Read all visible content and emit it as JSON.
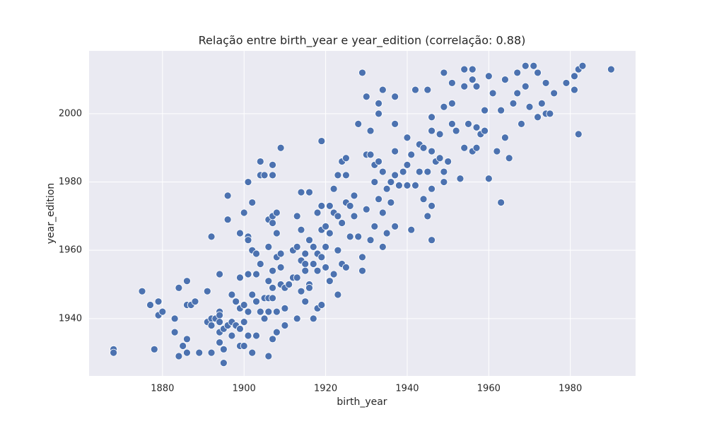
{
  "chart_data": {
    "type": "scatter",
    "title": "Relação entre birth_year e year_edition (correlação: 0.88)",
    "x_label": "birth_year",
    "y_label": "year_edition",
    "color": "#4c72b0",
    "grid": true,
    "xlim": [
      1862,
      1996
    ],
    "ylim": [
      1923.2,
      2018.4
    ],
    "xticks": [
      1880,
      1900,
      1920,
      1940,
      1960,
      1980
    ],
    "yticks": [
      1940,
      1960,
      1980,
      2000
    ],
    "x": [
      1868,
      1868,
      1875,
      1877,
      1879,
      1878,
      1879,
      1880,
      1883,
      1883,
      1884,
      1886,
      1884,
      1885,
      1886,
      1886,
      1886,
      1887,
      1888,
      1889,
      1891,
      1891,
      1892,
      1892,
      1892,
      1892,
      1893,
      1894,
      1894,
      1894,
      1894,
      1894,
      1894,
      1895,
      1895,
      1895,
      1896,
      1896,
      1896,
      1897,
      1897,
      1897,
      1898,
      1898,
      1899,
      1899,
      1899,
      1899,
      1899,
      1900,
      1900,
      1900,
      1900,
      1901,
      1901,
      1901,
      1901,
      1901,
      1901,
      1902,
      1902,
      1902,
      1902,
      1903,
      1903,
      1903,
      1903,
      1904,
      1904,
      1904,
      1904,
      1905,
      1905,
      1905,
      1906,
      1906,
      1906,
      1906,
      1906,
      1906,
      1907,
      1907,
      1907,
      1907,
      1907,
      1907,
      1907,
      1907,
      1908,
      1908,
      1908,
      1908,
      1908,
      1909,
      1909,
      1909,
      1909,
      1910,
      1910,
      1910,
      1911,
      1912,
      1912,
      1913,
      1913,
      1913,
      1913,
      1914,
      1914,
      1914,
      1914,
      1915,
      1915,
      1915,
      1915,
      1916,
      1916,
      1916,
      1916,
      1917,
      1917,
      1917,
      1918,
      1918,
      1918,
      1918,
      1919,
      1919,
      1919,
      1919,
      1919,
      1920,
      1920,
      1920,
      1921,
      1921,
      1921,
      1922,
      1922,
      1922,
      1923,
      1923,
      1923,
      1923,
      1924,
      1924,
      1924,
      1925,
      1925,
      1925,
      1925,
      1926,
      1926,
      1927,
      1927,
      1928,
      1928,
      1929,
      1929,
      1929,
      1930,
      1930,
      1930,
      1931,
      1931,
      1931,
      1932,
      1932,
      1932,
      1933,
      1933,
      1933,
      1933,
      1934,
      1934,
      1934,
      1934,
      1935,
      1935,
      1936,
      1936,
      1937,
      1937,
      1937,
      1937,
      1937,
      1938,
      1939,
      1940,
      1940,
      1940,
      1941,
      1941,
      1942,
      1942,
      1943,
      1943,
      1944,
      1944,
      1945,
      1945,
      1945,
      1946,
      1946,
      1946,
      1946,
      1946,
      1946,
      1947,
      1948,
      1948,
      1949,
      1949,
      1949,
      1949,
      1950,
      1951,
      1951,
      1951,
      1952,
      1953,
      1954,
      1954,
      1954,
      1955,
      1956,
      1956,
      1956,
      1957,
      1957,
      1957,
      1958,
      1959,
      1959,
      1960,
      1960,
      1961,
      1962,
      1963,
      1963,
      1964,
      1964,
      1965,
      1966,
      1967,
      1967,
      1968,
      1969,
      1969,
      1970,
      1971,
      1972,
      1972,
      1973,
      1974,
      1974,
      1975,
      1976,
      1979,
      1981,
      1981,
      1982,
      1982,
      1983,
      1990
    ],
    "values": [
      1931,
      1930,
      1948,
      1944,
      1945,
      1931,
      1941,
      1942,
      1940,
      1936,
      1949,
      1951,
      1929,
      1932,
      1934,
      1930,
      1944,
      1944,
      1945,
      1930,
      1948,
      1939,
      1964,
      1940,
      1938,
      1930,
      1940,
      1953,
      1942,
      1941,
      1939,
      1936,
      1933,
      1927,
      1931,
      1937,
      1976,
      1969,
      1938,
      1939,
      1935,
      1947,
      1945,
      1938,
      1965,
      1937,
      1932,
      1943,
      1952,
      1932,
      1939,
      1971,
      1944,
      1980,
      1964,
      1963,
      1953,
      1942,
      1935,
      1974,
      1960,
      1947,
      1930,
      1959,
      1945,
      1935,
      1953,
      1986,
      1982,
      1942,
      1956,
      1982,
      1946,
      1940,
      1961,
      1969,
      1929,
      1942,
      1946,
      1951,
      1985,
      1982,
      1968,
      1970,
      1934,
      1954,
      1946,
      1949,
      1971,
      1958,
      1942,
      1936,
      1965,
      1990,
      1955,
      1959,
      1950,
      1943,
      1938,
      1949,
      1950,
      1960,
      1952,
      1952,
      1970,
      1940,
      1961,
      1977,
      1966,
      1957,
      1948,
      1956,
      1954,
      1959,
      1945,
      1977,
      1963,
      1950,
      1949,
      1956,
      1940,
      1961,
      1943,
      1959,
      1954,
      1971,
      1992,
      1966,
      1973,
      1944,
      1958,
      1967,
      1961,
      1955,
      1973,
      1951,
      1965,
      1978,
      1971,
      1953,
      1947,
      1982,
      1960,
      1970,
      1986,
      1968,
      1956,
      1982,
      1987,
      1974,
      1955,
      1964,
      1973,
      1970,
      1976,
      1997,
      1964,
      2012,
      1954,
      1958,
      2005,
      1988,
      1972,
      1995,
      1963,
      1988,
      1985,
      1980,
      1967,
      2000,
      2003,
      1986,
      1975,
      2007,
      1961,
      1983,
      1971,
      1978,
      1965,
      1974,
      1980,
      2005,
      1997,
      1989,
      1967,
      1982,
      1979,
      1983,
      1993,
      1985,
      1979,
      1966,
      1988,
      2007,
      1979,
      1983,
      1991,
      1990,
      1975,
      2007,
      1983,
      1970,
      1963,
      1973,
      1999,
      1995,
      1989,
      1978,
      1986,
      1994,
      1987,
      2012,
      2002,
      1983,
      1980,
      1986,
      2009,
      2003,
      1997,
      1995,
      1981,
      2013,
      2008,
      1990,
      1997,
      2013,
      2010,
      1989,
      2008,
      1996,
      1990,
      1994,
      2001,
      1995,
      2011,
      1981,
      2006,
      1989,
      1974,
      2001,
      2010,
      1993,
      1987,
      2003,
      2012,
      2006,
      1997,
      2014,
      2008,
      2002,
      2014,
      2012,
      1999,
      2003,
      2009,
      2000,
      2000,
      2006,
      2009,
      2007,
      2011,
      2013,
      1994,
      2014,
      2013
    ]
  }
}
